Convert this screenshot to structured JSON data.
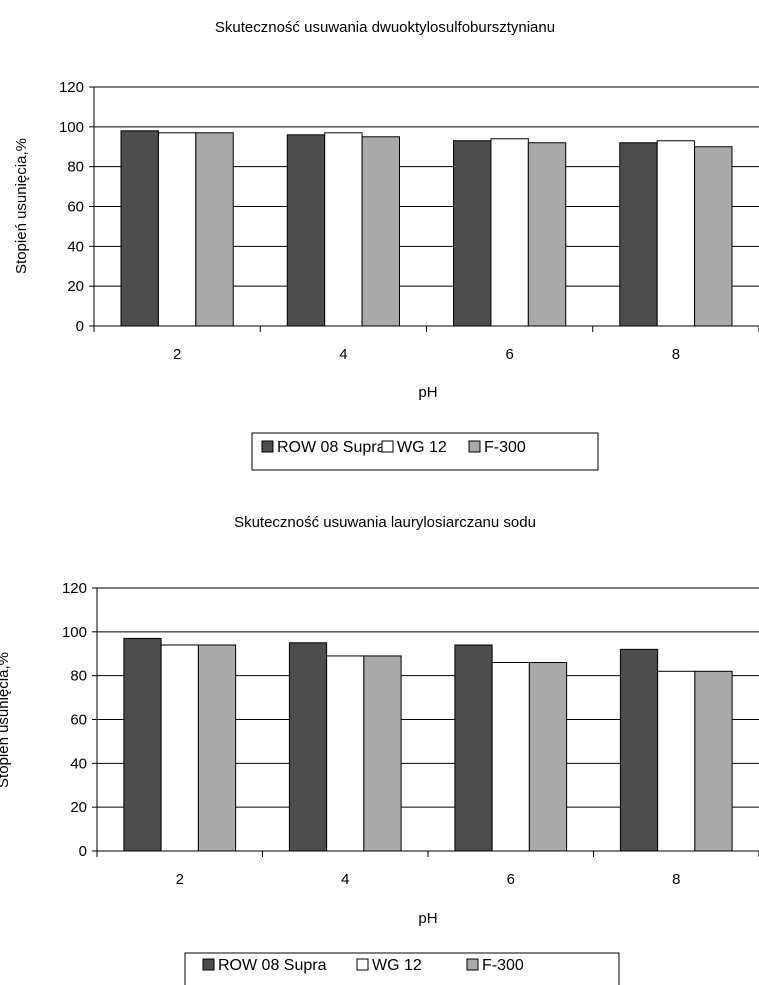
{
  "chart_data": [
    {
      "type": "bar",
      "title": "Skuteczność usuwania dwuoktylosulfobursztynianu",
      "xlabel": "pH",
      "ylabel": "Stopień usunięcia,%",
      "categories": [
        "2",
        "4",
        "6",
        "8"
      ],
      "ylim": [
        0,
        120
      ],
      "yticks": [
        "0",
        "20",
        "40",
        "60",
        "80",
        "100",
        "120"
      ],
      "grid": true,
      "legend_position": "bottom",
      "series": [
        {
          "name": "ROW 08 Supra",
          "color": "#4d4d4d",
          "values": [
            98,
            96,
            93,
            92
          ]
        },
        {
          "name": "WG 12",
          "color": "#ffffff",
          "values": [
            97,
            97,
            94,
            93
          ]
        },
        {
          "name": "F-300",
          "color": "#aaaaaa",
          "values": [
            97,
            95,
            92,
            90
          ]
        }
      ]
    },
    {
      "type": "bar",
      "title": "Skuteczność usuwania laurylosiarczanu sodu",
      "xlabel": "pH",
      "ylabel": "Stopień usunięcia,%",
      "categories": [
        "2",
        "4",
        "6",
        "8"
      ],
      "ylim": [
        0,
        120
      ],
      "yticks": [
        "0",
        "20",
        "40",
        "60",
        "80",
        "100",
        "120"
      ],
      "grid": true,
      "legend_position": "bottom",
      "series": [
        {
          "name": "ROW 08 Supra",
          "color": "#4d4d4d",
          "values": [
            97,
            95,
            94,
            92
          ]
        },
        {
          "name": "WG 12",
          "color": "#ffffff",
          "values": [
            94,
            89,
            86,
            82
          ]
        },
        {
          "name": "F-300",
          "color": "#aaaaaa",
          "values": [
            94,
            89,
            86,
            82
          ]
        }
      ]
    }
  ]
}
